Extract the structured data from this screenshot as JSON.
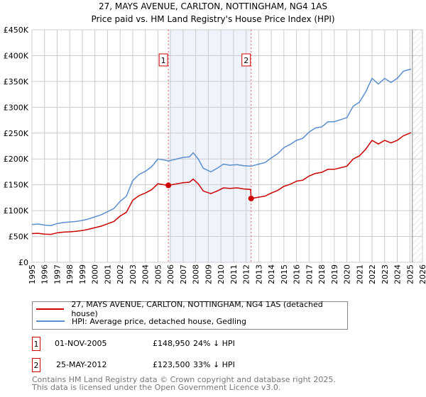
{
  "chart_data": {
    "type": "line",
    "title": "27, MAYS AVENUE, CARLTON, NOTTINGHAM, NG4 1AS",
    "subtitle": "Price paid vs. HM Land Registry's House Price Index (HPI)",
    "xlim": [
      1995,
      2026
    ],
    "ylim": [
      0,
      450000
    ],
    "x_ticks": [
      "1995",
      "1996",
      "1997",
      "1998",
      "1999",
      "2000",
      "2001",
      "2002",
      "2003",
      "2004",
      "2005",
      "2006",
      "2007",
      "2008",
      "2009",
      "2010",
      "2011",
      "2012",
      "2013",
      "2014",
      "2015",
      "2016",
      "2017",
      "2018",
      "2019",
      "2020",
      "2021",
      "2022",
      "2023",
      "2024",
      "2025",
      "2026"
    ],
    "y_ticks": [
      {
        "v": 0,
        "label": "£0"
      },
      {
        "v": 50000,
        "label": "£50K"
      },
      {
        "v": 100000,
        "label": "£100K"
      },
      {
        "v": 150000,
        "label": "£150K"
      },
      {
        "v": 200000,
        "label": "£200K"
      },
      {
        "v": 250000,
        "label": "£250K"
      },
      {
        "v": 300000,
        "label": "£300K"
      },
      {
        "v": 350000,
        "label": "£350K"
      },
      {
        "v": 400000,
        "label": "£400K"
      },
      {
        "v": 450000,
        "label": "£450K"
      }
    ],
    "grid": true,
    "future_hatch_from": 2025.2,
    "series": [
      {
        "name": "27, MAYS AVENUE, CARLTON, NOTTINGHAM, NG4 1AS (detached house)",
        "color": "#cc0000",
        "x": [
          1995,
          1995.5,
          1996,
          1996.5,
          1997,
          1997.5,
          1998,
          1998.5,
          1999,
          1999.5,
          2000,
          2000.5,
          2001,
          2001.5,
          2002,
          2002.5,
          2003,
          2003.5,
          2004,
          2004.5,
          2005,
          2005.5,
          2005.83,
          2006.5,
          2007,
          2007.5,
          2007.8,
          2008.2,
          2008.6,
          2009.2,
          2009.7,
          2010.2,
          2010.7,
          2011.3,
          2011.8,
          2012.36,
          2012.4,
          2013,
          2013.5,
          2014,
          2014.5,
          2015,
          2015.5,
          2016,
          2016.5,
          2017,
          2017.5,
          2018,
          2018.5,
          2019,
          2019.5,
          2020,
          2020.5,
          2021,
          2021.5,
          2022,
          2022.5,
          2023,
          2023.5,
          2024,
          2024.5,
          2025.1
        ],
        "y": [
          55500,
          56000,
          54500,
          54000,
          57000,
          58500,
          59000,
          60000,
          61500,
          64000,
          67000,
          70000,
          74500,
          79000,
          89500,
          97000,
          120000,
          129000,
          134000,
          140500,
          152000,
          150000,
          148950,
          152000,
          154000,
          155000,
          161000,
          152000,
          138000,
          133000,
          138000,
          144000,
          143000,
          144000,
          142000,
          141000,
          123500,
          126000,
          128000,
          134000,
          139000,
          147000,
          151000,
          157000,
          159000,
          167000,
          172000,
          174000,
          180000,
          180000,
          183000,
          186000,
          200000,
          206000,
          219000,
          236000,
          229000,
          236000,
          231000,
          236000,
          245000,
          251000
        ]
      },
      {
        "name": "HPI: Average price, detached house, Gedling",
        "color": "#5b8fd0",
        "x": [
          1995,
          1995.5,
          1996,
          1996.5,
          1997,
          1997.5,
          1998,
          1998.5,
          1999,
          1999.5,
          2000,
          2000.5,
          2001,
          2001.5,
          2002,
          2002.5,
          2003,
          2003.5,
          2004,
          2004.5,
          2005,
          2005.5,
          2005.83,
          2006.5,
          2007,
          2007.5,
          2007.8,
          2008.2,
          2008.6,
          2009.2,
          2009.7,
          2010.2,
          2010.7,
          2011.3,
          2011.8,
          2012.4,
          2013,
          2013.5,
          2014,
          2014.5,
          2015,
          2015.5,
          2016,
          2016.5,
          2017,
          2017.5,
          2018,
          2018.5,
          2019,
          2019.5,
          2020,
          2020.5,
          2021,
          2021.5,
          2022,
          2022.5,
          2023,
          2023.5,
          2024,
          2024.5,
          2025.1
        ],
        "y": [
          73000,
          74000,
          72000,
          71000,
          75000,
          77000,
          78000,
          79000,
          81000,
          84000,
          88000,
          92000,
          98000,
          104000,
          118000,
          128000,
          158000,
          170000,
          176000,
          185000,
          200000,
          198000,
          196000,
          200000,
          203000,
          204000,
          212000,
          200000,
          182000,
          175000,
          182000,
          190000,
          188000,
          189000,
          187000,
          186000,
          190000,
          193000,
          202000,
          210000,
          222000,
          228000,
          236000,
          240000,
          252000,
          260000,
          262000,
          272000,
          272000,
          276000,
          280000,
          302000,
          310000,
          330000,
          356000,
          345000,
          356000,
          348000,
          356000,
          370000,
          374000
        ]
      }
    ],
    "sales": [
      {
        "label": "1",
        "x": 2005.83,
        "date": "01-NOV-2005",
        "price": 148950,
        "price_text": "£148,950",
        "hpi_text": "24% ↓ HPI"
      },
      {
        "label": "2",
        "x": 2012.4,
        "date": "25-MAY-2012",
        "price": 123500,
        "price_text": "£123,500",
        "hpi_text": "33% ↓ HPI"
      }
    ]
  },
  "legend": {
    "red": "27, MAYS AVENUE, CARLTON, NOTTINGHAM, NG4 1AS (detached house)",
    "blue": "HPI: Average price, detached house, Gedling"
  },
  "footer": {
    "line1": "Contains HM Land Registry data © Crown copyright and database right 2025.",
    "line2": "This data is licensed under the Open Government Licence v3.0."
  }
}
